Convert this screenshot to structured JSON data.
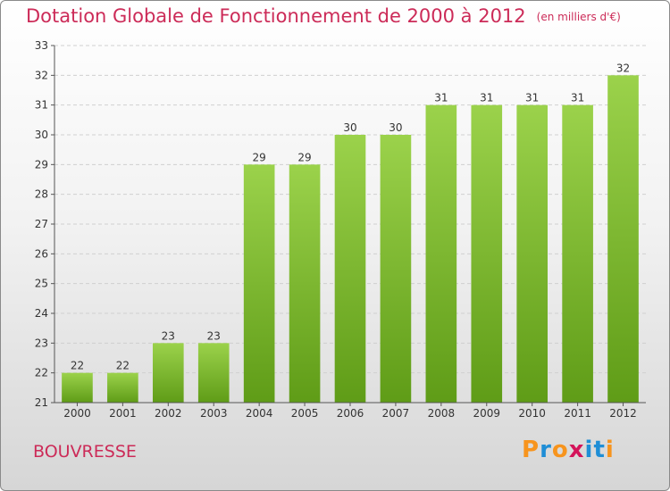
{
  "title": "Dotation Globale de Fonctionnement de 2000 à 2012",
  "unit": "(en milliers d'€)",
  "commune": "BOUVRESSE",
  "logo": {
    "text": "Proxiti",
    "colors": [
      "#f7941d",
      "#1f8ed6",
      "#f7941d",
      "#d4145a",
      "#1f8ed6",
      "#1f8ed6",
      "#f7941d"
    ]
  },
  "colors": {
    "title": "#cc2b58",
    "bar_top": "#9bd24b",
    "bar_bottom": "#5f9c17"
  },
  "chart_data": {
    "type": "bar",
    "categories": [
      "2000",
      "2001",
      "2002",
      "2003",
      "2004",
      "2005",
      "2006",
      "2007",
      "2008",
      "2009",
      "2010",
      "2011",
      "2012"
    ],
    "values": [
      22,
      22,
      23,
      23,
      29,
      29,
      30,
      30,
      31,
      31,
      31,
      31,
      32
    ],
    "ylim": [
      21,
      33
    ],
    "yticks": [
      21,
      22,
      23,
      24,
      25,
      26,
      27,
      28,
      29,
      30,
      31,
      32,
      33
    ],
    "grid": true
  }
}
